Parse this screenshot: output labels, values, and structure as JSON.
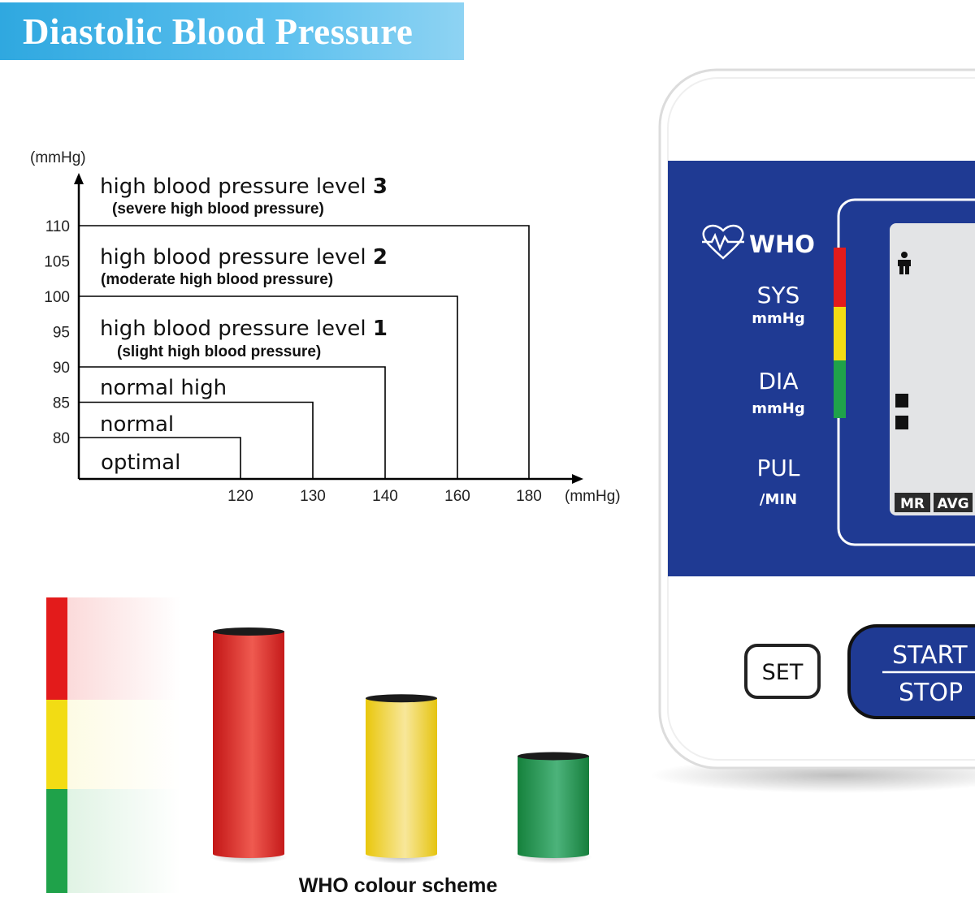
{
  "title": "Diastolic Blood Pressure",
  "chart_data": {
    "type": "step-zones",
    "y_unit_label": "(mmHg)",
    "x_unit_label": "(mmHg)",
    "y_ticks": [
      80,
      85,
      90,
      95,
      100,
      105,
      110
    ],
    "x_ticks": [
      120,
      130,
      140,
      160,
      180
    ],
    "zones": [
      {
        "label": "optimal",
        "bold": "",
        "sublabel": "",
        "y_top": 80,
        "x_right": 120
      },
      {
        "label": "normal",
        "bold": "",
        "sublabel": "",
        "y_top": 85,
        "x_right": 130
      },
      {
        "label": "normal high",
        "bold": "",
        "sublabel": "",
        "y_top": 90,
        "x_right": 140
      },
      {
        "label": "high blood pressure level ",
        "bold": "1",
        "sublabel": "(slight high blood pressure)",
        "y_top": 100,
        "x_right": 160
      },
      {
        "label": "high blood pressure level ",
        "bold": "2",
        "sublabel": "(moderate high blood pressure)",
        "y_top": 110,
        "x_right": 180
      },
      {
        "label": "high blood pressure level ",
        "bold": "3",
        "sublabel": "(severe high blood pressure)",
        "y_top": null,
        "x_right": null
      }
    ]
  },
  "colour_scheme": {
    "caption": "WHO colour scheme",
    "colors": {
      "red": "#e31b1b",
      "yellow": "#f2dc14",
      "green": "#1fa24a"
    },
    "bars_relative_height": {
      "red": 1.0,
      "yellow": 0.7,
      "green": 0.44
    }
  },
  "device": {
    "brand": "WHO",
    "labels": {
      "sys": "SYS",
      "sys_unit": "mmHg",
      "dia": "DIA",
      "dia_unit": "mmHg",
      "pul": "PUL",
      "pul_unit": "/MIN"
    },
    "screen_tags": [
      "MR",
      "AVG"
    ],
    "buttons": {
      "set": "SET",
      "start": "START",
      "stop": "STOP"
    },
    "colors": {
      "panel": "#1f3a93",
      "screen": "#e3e4e6"
    }
  }
}
